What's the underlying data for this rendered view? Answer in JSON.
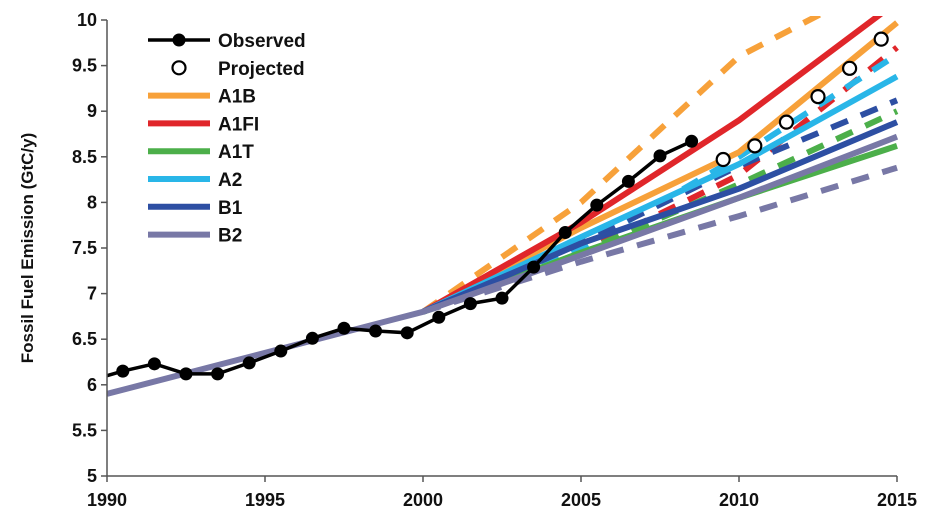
{
  "chart_data": {
    "type": "line",
    "title": "",
    "xlabel": "",
    "ylabel": "Fossil Fuel Emission (GtC/y)",
    "xlim": [
      1990,
      2015
    ],
    "ylim": [
      5,
      10
    ],
    "x_ticks": [
      "1990",
      "1995",
      "2000",
      "2005",
      "2010",
      "2015"
    ],
    "y_ticks": [
      "5",
      "5.5",
      "6",
      "6.5",
      "7",
      "7.5",
      "8",
      "8.5",
      "9",
      "9.5",
      "10"
    ],
    "grid": false,
    "legend_position": "top-left",
    "colors": {
      "observed": "#000000",
      "A1B": "#f7a13a",
      "A1FI": "#e0262a",
      "A1T": "#4caf4a",
      "A2": "#29b6e8",
      "B1": "#2d4fa3",
      "B2": "#7878a6"
    },
    "observed": {
      "name": "Observed",
      "x": [
        1990,
        1991,
        1992,
        1993,
        1994,
        1995,
        1996,
        1997,
        1998,
        1999,
        2000,
        2001,
        2002,
        2003,
        2004,
        2005,
        2006,
        2007,
        2008
      ],
      "y": [
        6.15,
        6.23,
        6.12,
        6.12,
        6.24,
        6.37,
        6.51,
        6.62,
        6.59,
        6.57,
        6.74,
        6.89,
        6.95,
        7.29,
        7.67,
        7.97,
        8.23,
        8.51,
        8.67
      ]
    },
    "projected": {
      "name": "Projected",
      "x": [
        2009,
        2010,
        2011,
        2012,
        2013,
        2014
      ],
      "y": [
        8.47,
        8.62,
        8.88,
        9.16,
        9.47,
        9.79
      ]
    },
    "scenarios": [
      {
        "name": "A1B",
        "color": "#f7a13a",
        "solid": {
          "x": [
            2000,
            2005,
            2010,
            2015
          ],
          "y": [
            6.8,
            7.72,
            8.55,
            9.97
          ]
        },
        "dashed": {
          "x": [
            2000,
            2005,
            2010,
            2015
          ],
          "y": [
            6.8,
            8.0,
            9.6,
            10.5
          ]
        }
      },
      {
        "name": "A1FI",
        "color": "#e0262a",
        "solid": {
          "x": [
            2000,
            2005,
            2010,
            2015
          ],
          "y": [
            6.8,
            7.78,
            8.9,
            10.2
          ]
        },
        "dashed": {
          "x": [
            2000,
            2005,
            2010,
            2015
          ],
          "y": [
            6.8,
            7.45,
            8.3,
            9.7
          ]
        }
      },
      {
        "name": "A1T",
        "color": "#4caf4a",
        "solid": {
          "x": [
            2000,
            2005,
            2010,
            2015
          ],
          "y": [
            6.8,
            7.45,
            8.05,
            8.62
          ]
        },
        "dashed": {
          "x": [
            2000,
            2005,
            2010,
            2015
          ],
          "y": [
            6.8,
            7.45,
            8.2,
            9.0
          ]
        }
      },
      {
        "name": "A2",
        "color": "#29b6e8",
        "solid": {
          "x": [
            2000,
            2005,
            2010,
            2015
          ],
          "y": [
            6.8,
            7.62,
            8.42,
            9.38
          ]
        },
        "dashed": {
          "x": [
            2000,
            2005,
            2010,
            2015
          ],
          "y": [
            6.8,
            7.5,
            8.5,
            9.62
          ]
        }
      },
      {
        "name": "B1",
        "color": "#2d4fa3",
        "solid": {
          "x": [
            2000,
            2005,
            2010,
            2015
          ],
          "y": [
            6.8,
            7.55,
            8.15,
            8.88
          ]
        },
        "dashed": {
          "x": [
            2000,
            2005,
            2010,
            2015
          ],
          "y": [
            6.8,
            7.55,
            8.4,
            9.12
          ]
        }
      },
      {
        "name": "B2",
        "color": "#7878a6",
        "solid": {
          "x": [
            1990,
            2000,
            2005,
            2010,
            2015
          ],
          "y": [
            5.9,
            6.8,
            7.42,
            8.05,
            8.72
          ]
        },
        "dashed": {
          "x": [
            2000,
            2005,
            2010,
            2015
          ],
          "y": [
            6.8,
            7.35,
            7.85,
            8.38
          ]
        }
      }
    ],
    "legend": {
      "observed": "Observed",
      "projected": "Projected",
      "A1B": "A1B",
      "A1FI": "A1FI",
      "A1T": "A1T",
      "A2": "A2",
      "B1": "B1",
      "B2": "B2"
    }
  }
}
